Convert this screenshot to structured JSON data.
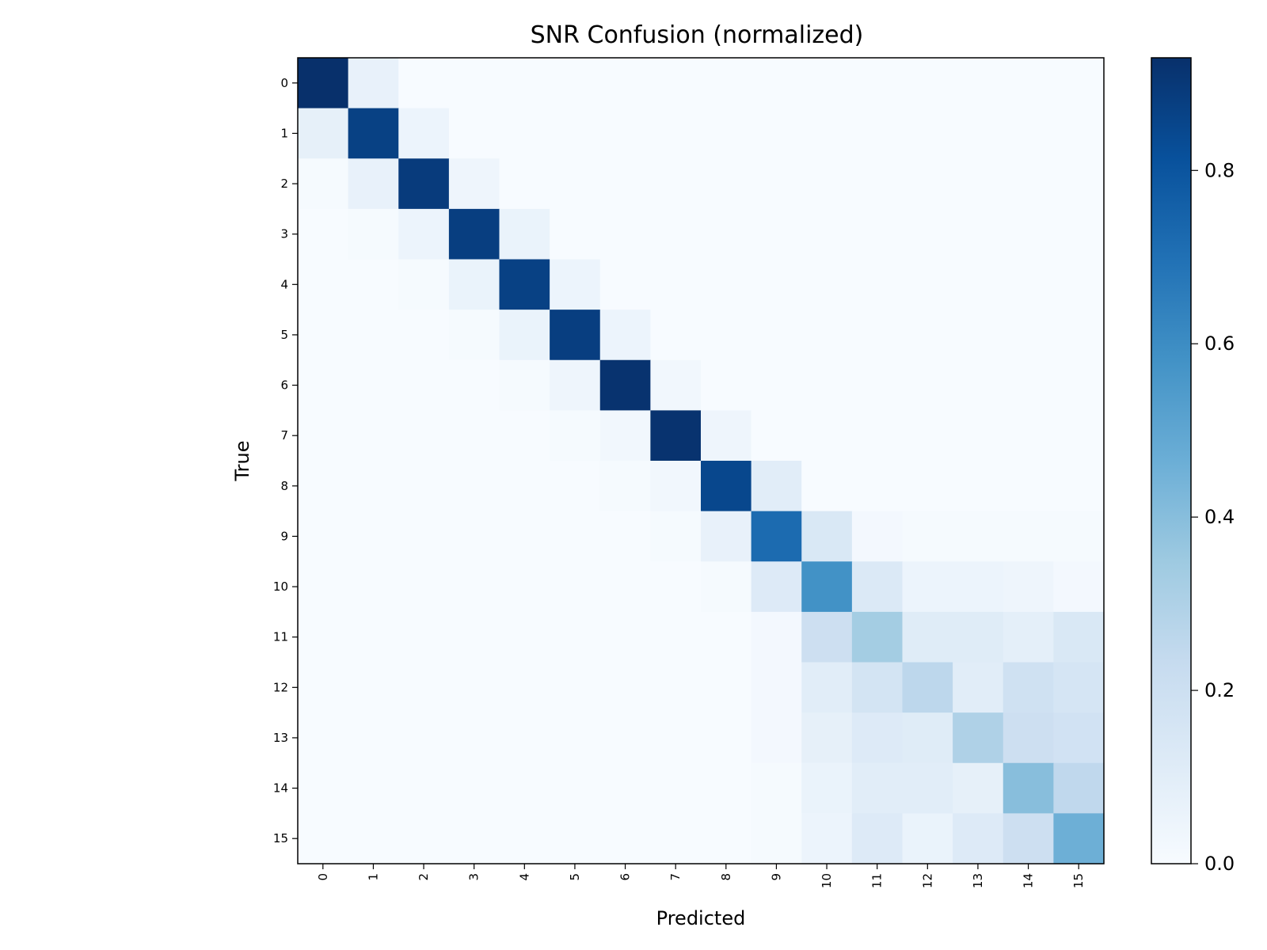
{
  "chart_data": {
    "type": "heatmap",
    "title": "SNR Confusion (normalized)",
    "xlabel": "Predicted",
    "ylabel": "True",
    "x_categories": [
      "0",
      "1",
      "2",
      "3",
      "4",
      "5",
      "6",
      "7",
      "8",
      "9",
      "10",
      "11",
      "12",
      "13",
      "14",
      "15"
    ],
    "y_categories": [
      "0",
      "1",
      "2",
      "3",
      "4",
      "5",
      "6",
      "7",
      "8",
      "9",
      "10",
      "11",
      "12",
      "13",
      "14",
      "15"
    ],
    "colormap": "Blues",
    "colorbar": {
      "min": 0.0,
      "max": 0.93,
      "ticks": [
        0.0,
        0.2,
        0.4,
        0.6,
        0.8
      ],
      "tick_labels": [
        "0.0",
        "0.2",
        "0.4",
        "0.6",
        "0.8"
      ]
    },
    "matrix": [
      [
        0.93,
        0.07,
        0,
        0,
        0,
        0,
        0,
        0,
        0,
        0,
        0,
        0,
        0,
        0,
        0,
        0
      ],
      [
        0.08,
        0.87,
        0.05,
        0,
        0,
        0,
        0,
        0,
        0,
        0,
        0,
        0,
        0,
        0,
        0,
        0
      ],
      [
        0.01,
        0.07,
        0.89,
        0.04,
        0,
        0,
        0,
        0,
        0,
        0,
        0,
        0,
        0,
        0,
        0,
        0
      ],
      [
        0,
        0.01,
        0.05,
        0.88,
        0.06,
        0,
        0,
        0,
        0,
        0,
        0,
        0,
        0,
        0,
        0,
        0
      ],
      [
        0,
        0,
        0.01,
        0.06,
        0.87,
        0.05,
        0,
        0,
        0,
        0,
        0,
        0,
        0,
        0,
        0,
        0
      ],
      [
        0,
        0,
        0,
        0.01,
        0.06,
        0.88,
        0.05,
        0,
        0,
        0,
        0,
        0,
        0,
        0,
        0,
        0
      ],
      [
        0,
        0,
        0,
        0,
        0.01,
        0.04,
        0.92,
        0.03,
        0,
        0,
        0,
        0,
        0,
        0,
        0,
        0
      ],
      [
        0,
        0,
        0,
        0,
        0,
        0.01,
        0.03,
        0.92,
        0.04,
        0,
        0,
        0,
        0,
        0,
        0,
        0
      ],
      [
        0,
        0,
        0,
        0,
        0,
        0,
        0.01,
        0.03,
        0.85,
        0.1,
        0,
        0,
        0,
        0,
        0,
        0
      ],
      [
        0,
        0,
        0,
        0,
        0,
        0,
        0,
        0.01,
        0.07,
        0.72,
        0.14,
        0.02,
        0.01,
        0.01,
        0.01,
        0.01
      ],
      [
        0,
        0,
        0,
        0,
        0,
        0,
        0,
        0,
        0.01,
        0.12,
        0.58,
        0.13,
        0.05,
        0.05,
        0.04,
        0.02
      ],
      [
        0,
        0,
        0,
        0,
        0,
        0,
        0,
        0,
        0,
        0.02,
        0.2,
        0.33,
        0.11,
        0.11,
        0.09,
        0.14
      ],
      [
        0,
        0,
        0,
        0,
        0,
        0,
        0,
        0,
        0,
        0.02,
        0.1,
        0.17,
        0.26,
        0.1,
        0.19,
        0.16
      ],
      [
        0,
        0,
        0,
        0,
        0,
        0,
        0,
        0,
        0,
        0.02,
        0.08,
        0.12,
        0.11,
        0.3,
        0.2,
        0.18
      ],
      [
        0,
        0,
        0,
        0,
        0,
        0,
        0,
        0,
        0,
        0.01,
        0.06,
        0.1,
        0.1,
        0.08,
        0.4,
        0.25
      ],
      [
        0,
        0,
        0,
        0,
        0,
        0,
        0,
        0,
        0,
        0.01,
        0.05,
        0.12,
        0.06,
        0.12,
        0.2,
        0.46
      ]
    ]
  }
}
